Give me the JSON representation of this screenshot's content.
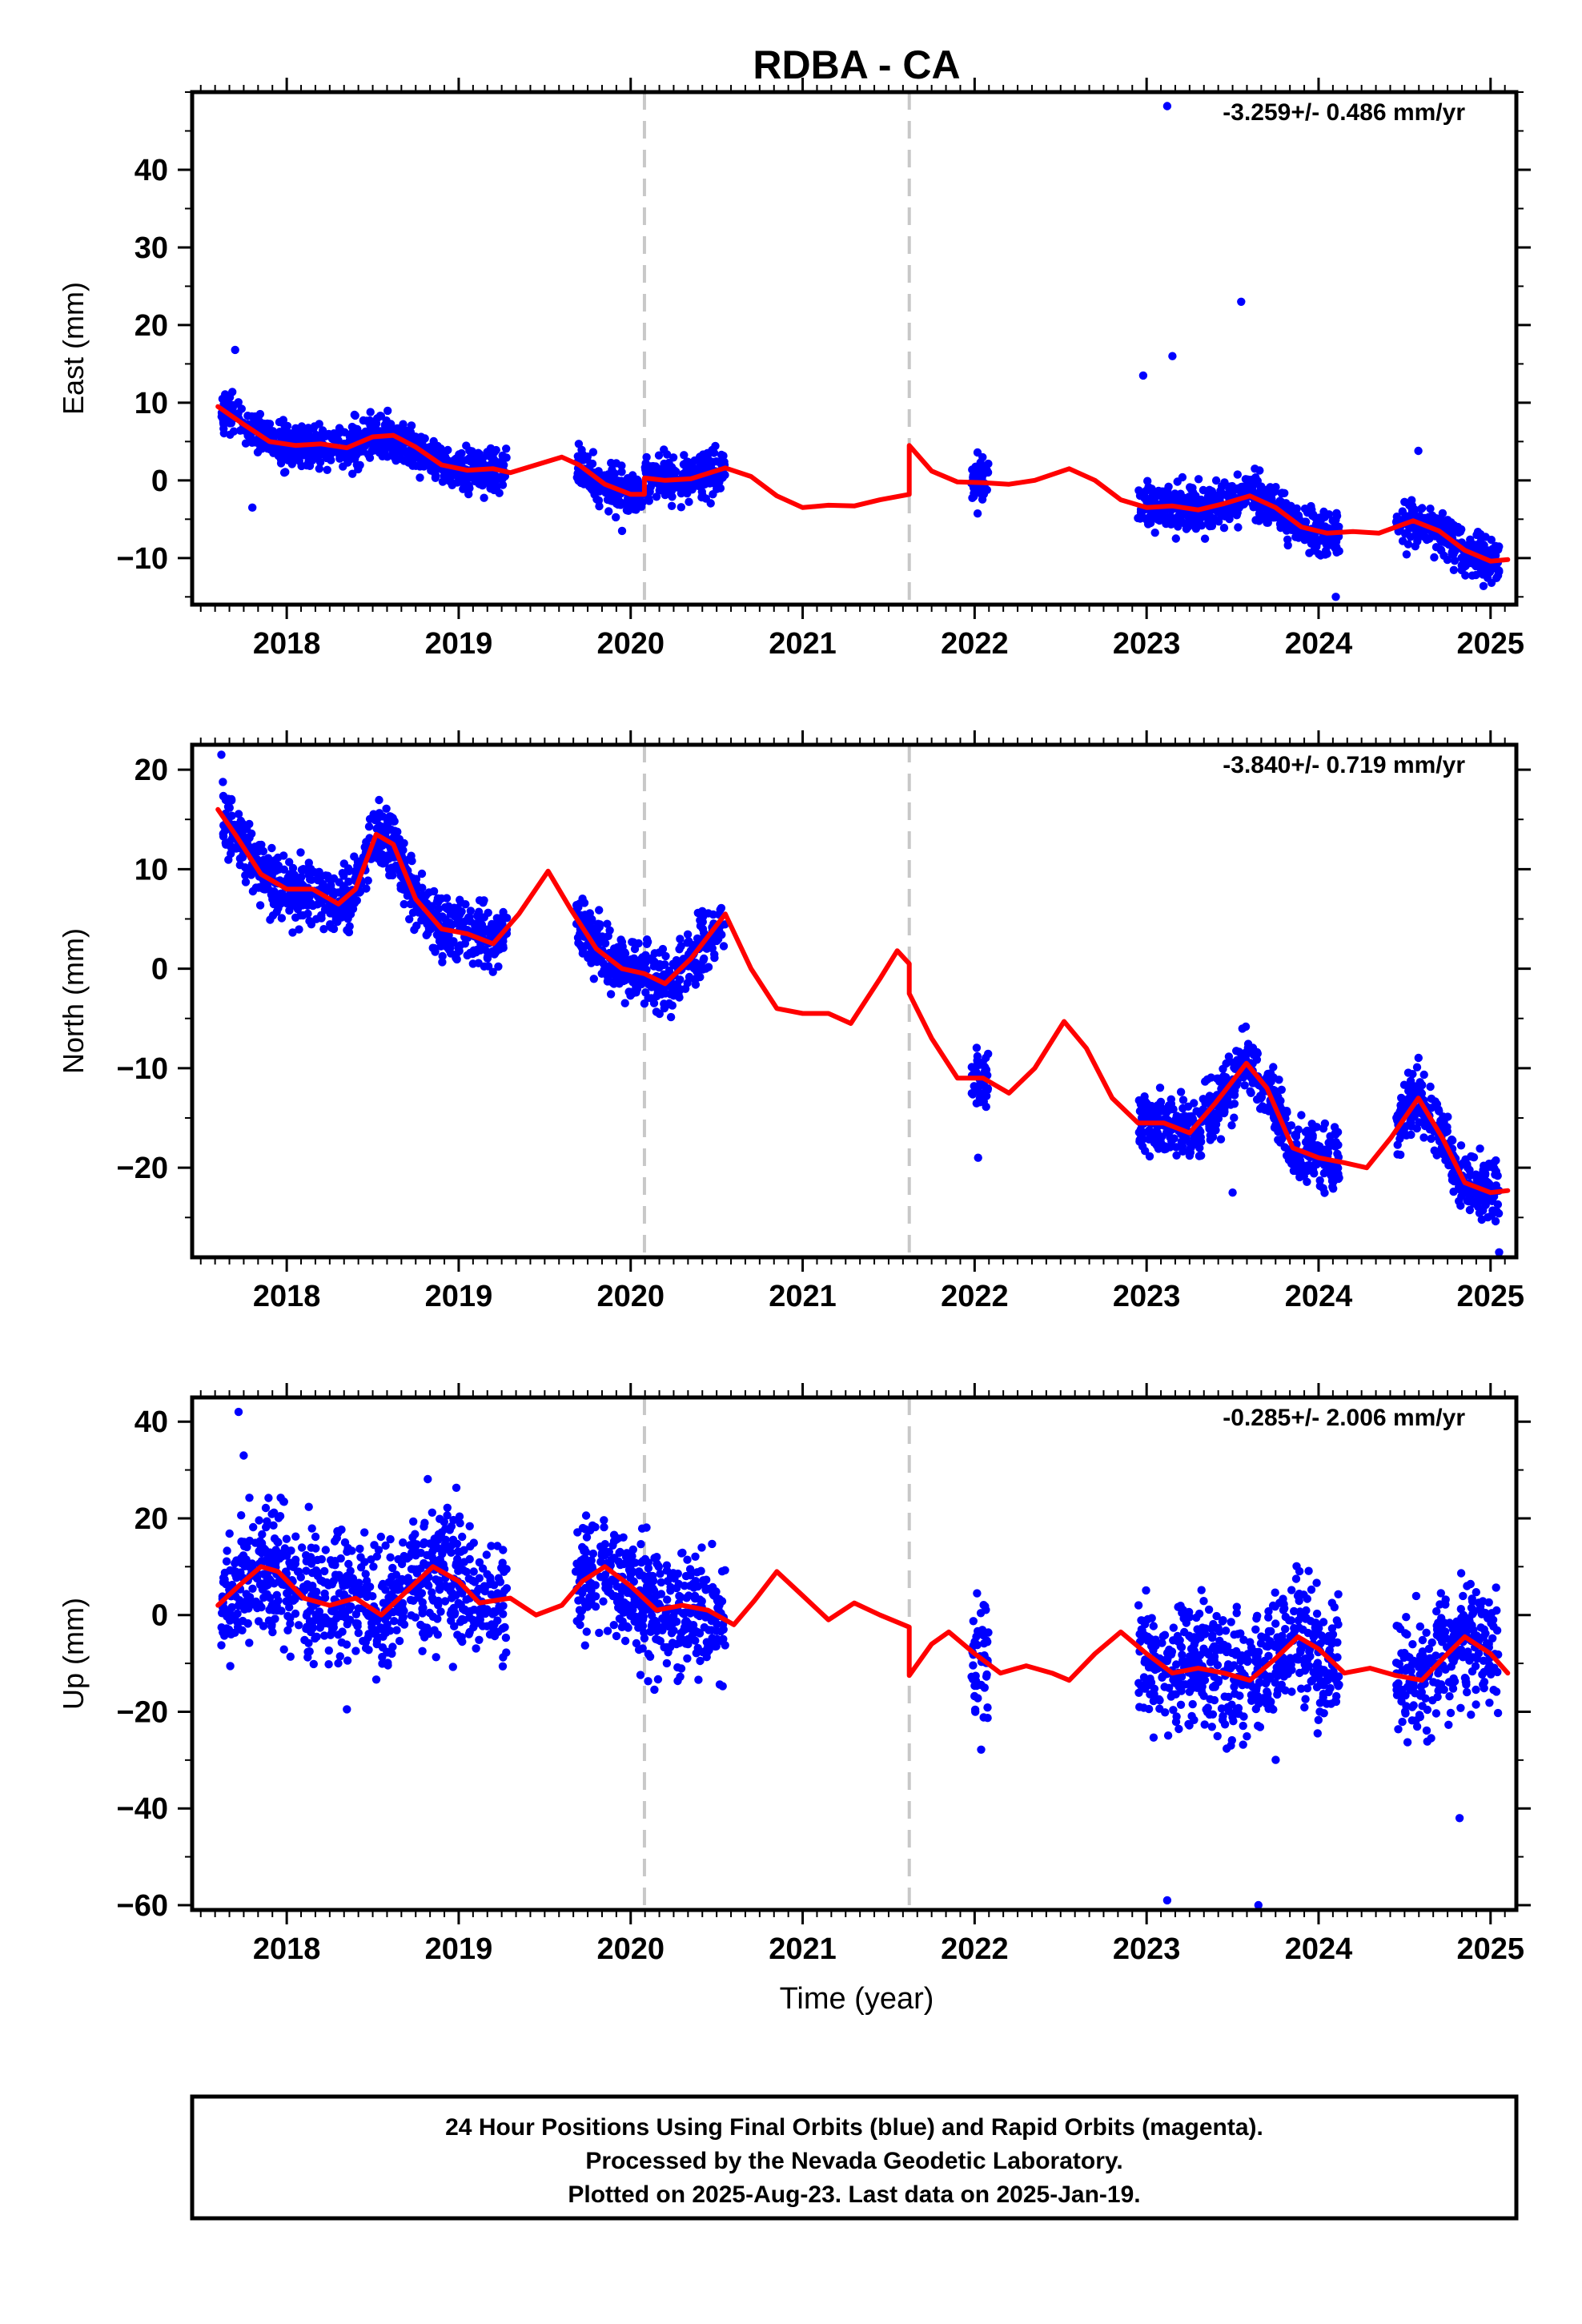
{
  "chart_data": {
    "type": "scatter",
    "title": "RDBA - CA",
    "xlabel": "Time (year)",
    "xlim": [
      2017.45,
      2025.15
    ],
    "xticks": [
      2018,
      2019,
      2020,
      2021,
      2022,
      2023,
      2024,
      2025
    ],
    "vertical_lines": [
      2020.08,
      2021.62
    ],
    "colors": {
      "points": "#0000ff",
      "model": "#ff0000",
      "vline": "#c8c8c8"
    },
    "panels": [
      {
        "ylabel": "East (mm)",
        "ylim": [
          -16,
          50
        ],
        "yticks": [
          -10,
          0,
          10,
          20,
          30,
          40
        ],
        "rate": "-3.259+/- 0.486 mm/yr",
        "segments": [
          [
            2017.62,
            2019.28
          ],
          [
            2019.68,
            2020.55
          ],
          [
            2021.98,
            2022.08
          ],
          [
            2022.95,
            2024.12
          ],
          [
            2024.45,
            2025.05
          ]
        ],
        "model": [
          [
            2017.6,
            9.5
          ],
          [
            2017.75,
            7.2
          ],
          [
            2017.9,
            5.0
          ],
          [
            2018.05,
            4.5
          ],
          [
            2018.2,
            4.7
          ],
          [
            2018.35,
            4.2
          ],
          [
            2018.5,
            5.6
          ],
          [
            2018.62,
            5.8
          ],
          [
            2018.75,
            4.3
          ],
          [
            2018.9,
            2.0
          ],
          [
            2019.05,
            1.3
          ],
          [
            2019.2,
            1.5
          ],
          [
            2019.3,
            1.0
          ],
          [
            2019.45,
            2.0
          ],
          [
            2019.6,
            3.0
          ],
          [
            2019.7,
            2.0
          ],
          [
            2019.85,
            -0.5
          ],
          [
            2020.0,
            -1.8
          ],
          [
            2020.08,
            -1.8
          ],
          [
            2020.08,
            0.3
          ],
          [
            2020.2,
            0.0
          ],
          [
            2020.35,
            0.2
          ],
          [
            2020.55,
            1.6
          ],
          [
            2020.7,
            0.5
          ],
          [
            2020.85,
            -2.0
          ],
          [
            2021.0,
            -3.5
          ],
          [
            2021.15,
            -3.2
          ],
          [
            2021.3,
            -3.3
          ],
          [
            2021.45,
            -2.5
          ],
          [
            2021.62,
            -1.8
          ],
          [
            2021.62,
            4.5
          ],
          [
            2021.75,
            1.2
          ],
          [
            2021.9,
            -0.2
          ],
          [
            2022.05,
            -0.3
          ],
          [
            2022.2,
            -0.5
          ],
          [
            2022.35,
            0.0
          ],
          [
            2022.55,
            1.5
          ],
          [
            2022.7,
            0.0
          ],
          [
            2022.85,
            -2.5
          ],
          [
            2023.0,
            -3.5
          ],
          [
            2023.15,
            -3.3
          ],
          [
            2023.3,
            -3.8
          ],
          [
            2023.45,
            -3.0
          ],
          [
            2023.6,
            -2.0
          ],
          [
            2023.75,
            -3.5
          ],
          [
            2023.9,
            -6.0
          ],
          [
            2024.05,
            -6.8
          ],
          [
            2024.2,
            -6.6
          ],
          [
            2024.35,
            -6.8
          ],
          [
            2024.55,
            -5.2
          ],
          [
            2024.7,
            -6.5
          ],
          [
            2024.85,
            -9.0
          ],
          [
            2025.0,
            -10.4
          ],
          [
            2025.1,
            -10.2
          ]
        ],
        "outliers": [
          [
            2017.7,
            16.8
          ],
          [
            2023.12,
            48.2
          ],
          [
            2023.55,
            23.0
          ],
          [
            2023.15,
            16.0
          ],
          [
            2022.98,
            13.5
          ],
          [
            2024.58,
            3.8
          ],
          [
            2024.1,
            -15
          ],
          [
            2017.8,
            -3.5
          ],
          [
            2019.95,
            -6.5
          ]
        ]
      },
      {
        "ylabel": "North (mm)",
        "ylim": [
          -29,
          22.5
        ],
        "yticks": [
          -20,
          -10,
          0,
          10,
          20
        ],
        "rate": "-3.840+/- 0.719 mm/yr",
        "segments": [
          [
            2017.62,
            2019.28
          ],
          [
            2019.68,
            2020.55
          ],
          [
            2021.98,
            2022.08
          ],
          [
            2022.95,
            2024.12
          ],
          [
            2024.45,
            2025.05
          ]
        ],
        "model": [
          [
            2017.6,
            16.0
          ],
          [
            2017.7,
            13.5
          ],
          [
            2017.85,
            9.5
          ],
          [
            2018.0,
            8.0
          ],
          [
            2018.15,
            8.0
          ],
          [
            2018.3,
            6.5
          ],
          [
            2018.4,
            8.0
          ],
          [
            2018.52,
            13.5
          ],
          [
            2018.62,
            12.5
          ],
          [
            2018.75,
            7.0
          ],
          [
            2018.9,
            4.0
          ],
          [
            2019.05,
            3.5
          ],
          [
            2019.2,
            2.5
          ],
          [
            2019.35,
            5.5
          ],
          [
            2019.52,
            9.8
          ],
          [
            2019.65,
            6.0
          ],
          [
            2019.8,
            2.0
          ],
          [
            2019.95,
            0.0
          ],
          [
            2020.08,
            -0.5
          ],
          [
            2020.2,
            -1.5
          ],
          [
            2020.35,
            1.0
          ],
          [
            2020.55,
            5.5
          ],
          [
            2020.7,
            0.0
          ],
          [
            2020.85,
            -4.0
          ],
          [
            2021.0,
            -4.5
          ],
          [
            2021.15,
            -4.5
          ],
          [
            2021.28,
            -5.5
          ],
          [
            2021.45,
            -1.0
          ],
          [
            2021.55,
            1.8
          ],
          [
            2021.62,
            0.5
          ],
          [
            2021.62,
            -2.5
          ],
          [
            2021.75,
            -7.0
          ],
          [
            2021.9,
            -11.0
          ],
          [
            2022.05,
            -11.0
          ],
          [
            2022.2,
            -12.5
          ],
          [
            2022.35,
            -10.0
          ],
          [
            2022.52,
            -5.3
          ],
          [
            2022.65,
            -8.0
          ],
          [
            2022.8,
            -13.0
          ],
          [
            2022.95,
            -15.5
          ],
          [
            2023.1,
            -15.5
          ],
          [
            2023.25,
            -16.5
          ],
          [
            2023.4,
            -13.5
          ],
          [
            2023.58,
            -9.5
          ],
          [
            2023.7,
            -12.0
          ],
          [
            2023.85,
            -18.0
          ],
          [
            2024.0,
            -19.0
          ],
          [
            2024.15,
            -19.5
          ],
          [
            2024.28,
            -20.0
          ],
          [
            2024.42,
            -17.0
          ],
          [
            2024.58,
            -13.0
          ],
          [
            2024.72,
            -17.0
          ],
          [
            2024.85,
            -21.5
          ],
          [
            2025.0,
            -22.5
          ],
          [
            2025.1,
            -22.3
          ]
        ],
        "outliers": [
          [
            2017.62,
            21.5
          ],
          [
            2023.5,
            -22.5
          ],
          [
            2025.05,
            -28.5
          ],
          [
            2022.02,
            -19.0
          ]
        ]
      },
      {
        "ylabel": "Up (mm)",
        "ylim": [
          -61,
          45
        ],
        "yticks": [
          -60,
          -40,
          -20,
          0,
          20,
          40
        ],
        "rate": "-0.285+/- 2.006 mm/yr",
        "segments": [
          [
            2017.62,
            2019.28
          ],
          [
            2019.68,
            2020.55
          ],
          [
            2021.98,
            2022.08
          ],
          [
            2022.95,
            2024.12
          ],
          [
            2024.45,
            2025.05
          ]
        ],
        "model": [
          [
            2017.6,
            2.0
          ],
          [
            2017.72,
            6.0
          ],
          [
            2017.85,
            10.0
          ],
          [
            2017.95,
            9.0
          ],
          [
            2018.1,
            3.5
          ],
          [
            2018.25,
            2.0
          ],
          [
            2018.4,
            3.5
          ],
          [
            2018.55,
            0.0
          ],
          [
            2018.7,
            5.0
          ],
          [
            2018.85,
            10.0
          ],
          [
            2019.0,
            7.0
          ],
          [
            2019.12,
            2.5
          ],
          [
            2019.3,
            3.5
          ],
          [
            2019.45,
            0.0
          ],
          [
            2019.6,
            2.0
          ],
          [
            2019.72,
            7.0
          ],
          [
            2019.85,
            10.0
          ],
          [
            2020.0,
            6.0
          ],
          [
            2020.15,
            1.0
          ],
          [
            2020.3,
            2.0
          ],
          [
            2020.45,
            1.0
          ],
          [
            2020.6,
            -2.0
          ],
          [
            2020.72,
            3.0
          ],
          [
            2020.85,
            9.0
          ],
          [
            2021.0,
            4.0
          ],
          [
            2021.15,
            -1.0
          ],
          [
            2021.3,
            2.5
          ],
          [
            2021.45,
            0.0
          ],
          [
            2021.62,
            -2.5
          ],
          [
            2021.62,
            -12.5
          ],
          [
            2021.75,
            -6.0
          ],
          [
            2021.85,
            -3.5
          ],
          [
            2022.0,
            -8.0
          ],
          [
            2022.15,
            -12.0
          ],
          [
            2022.3,
            -10.5
          ],
          [
            2022.45,
            -12.0
          ],
          [
            2022.55,
            -13.5
          ],
          [
            2022.7,
            -8.0
          ],
          [
            2022.85,
            -3.5
          ],
          [
            2023.0,
            -8.0
          ],
          [
            2023.15,
            -12.0
          ],
          [
            2023.3,
            -11.0
          ],
          [
            2023.45,
            -12.0
          ],
          [
            2023.6,
            -13.5
          ],
          [
            2023.75,
            -9.0
          ],
          [
            2023.88,
            -4.5
          ],
          [
            2024.0,
            -7.0
          ],
          [
            2024.15,
            -12.0
          ],
          [
            2024.3,
            -11.0
          ],
          [
            2024.45,
            -12.5
          ],
          [
            2024.6,
            -13.5
          ],
          [
            2024.75,
            -8.0
          ],
          [
            2024.85,
            -4.5
          ],
          [
            2025.0,
            -8.0
          ],
          [
            2025.1,
            -12.0
          ]
        ],
        "outliers": [
          [
            2017.72,
            42.0
          ],
          [
            2017.75,
            33.0
          ],
          [
            2023.12,
            -59.0
          ],
          [
            2023.65,
            -60.0
          ],
          [
            2018.35,
            -19.5
          ],
          [
            2024.82,
            -42.0
          ]
        ]
      }
    ],
    "footer": [
      "24 Hour Positions Using Final Orbits (blue) and Rapid Orbits (magenta).",
      "Processed by the Nevada Geodetic Laboratory.",
      "Plotted on 2025-Aug-23. Last data on 2025-Jan-19."
    ]
  }
}
